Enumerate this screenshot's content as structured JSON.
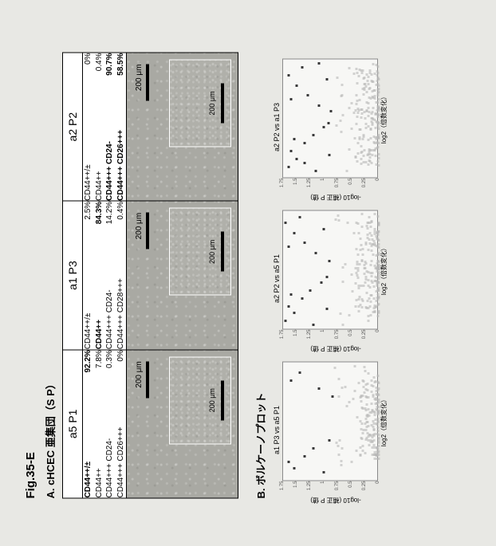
{
  "figure_label": "Fig.35-E",
  "panelA": {
    "title": "A. cHCEC 亜集団（S P）",
    "columns": [
      {
        "header": "a5 P1",
        "markers": [
          {
            "label": "CD44++/±",
            "pct": "92.2%",
            "bold": true
          },
          {
            "label": "CD44++",
            "pct": "7.8%"
          },
          {
            "label": "CD44+++  CD24-",
            "pct": "0.3%"
          },
          {
            "label": "CD44+++  CD26+++",
            "pct": "0%"
          }
        ],
        "scale_out": "200 μm",
        "scale_in": "200 μm"
      },
      {
        "header": "a1 P3",
        "markers": [
          {
            "label": "CD44++/±",
            "pct": "2.5%"
          },
          {
            "label": "CD44++",
            "pct": "84.3%",
            "bold": true
          },
          {
            "label": "CD44+++  CD24-",
            "pct": "14.2%"
          },
          {
            "label": "CD44+++  CD28+++",
            "pct": "0.4%"
          }
        ],
        "scale_out": "200 μm",
        "scale_in": "200 μm"
      },
      {
        "header": "a2 P2",
        "markers": [
          {
            "label": "CD44++/±",
            "pct": "0%"
          },
          {
            "label": "CD44++",
            "pct": "0.4%"
          },
          {
            "label": "CD44+++  CD24-",
            "pct": "90.7%",
            "bold": true
          },
          {
            "label": "CD44+++  CD26+++",
            "pct": "58.5%",
            "bold": true
          }
        ],
        "scale_out": "200 μm",
        "scale_in": "200 μm"
      }
    ]
  },
  "panelB": {
    "title": "B. ボルケーノプロット",
    "xlabel": "log2（倍数変化）",
    "ylabel": "-log10 (補正 P 値)",
    "plots": [
      {
        "title": "a1 P3 vs a5 P1",
        "yticks": [
          0,
          0.25,
          0.5,
          0.75,
          1,
          1.25,
          1.5,
          1.75
        ],
        "ylim": [
          0,
          1.75
        ],
        "xlim": [
          -3,
          3
        ],
        "colors": {
          "bg": "#f7f7f5",
          "grid": "#8a8a8a",
          "ns": "#b8b8b8",
          "sig": "#3a3a3a"
        },
        "gray_cloud": {
          "n": 140,
          "x_spread": 2.0,
          "y_max": 0.35
        },
        "sig_points": [
          {
            "x": -2.4,
            "y": 1.55
          },
          {
            "x": -2.1,
            "y": 1.65
          },
          {
            "x": -1.8,
            "y": 1.35
          },
          {
            "x": -1.4,
            "y": 1.2
          },
          {
            "x": 2.0,
            "y": 1.6
          },
          {
            "x": 1.6,
            "y": 1.1
          },
          {
            "x": -2.6,
            "y": 1.0
          },
          {
            "x": 2.4,
            "y": 1.45
          },
          {
            "x": -1.0,
            "y": 0.9
          },
          {
            "x": 1.2,
            "y": 0.85
          }
        ]
      },
      {
        "title": "a2 P2 vs a5 P1",
        "yticks": [
          0,
          0.25,
          0.5,
          0.75,
          1,
          1.25,
          1.5,
          1.75
        ],
        "ylim": [
          0,
          1.75
        ],
        "xlim": [
          -3,
          3
        ],
        "colors": {
          "bg": "#f7f7f5",
          "grid": "#8a8a8a",
          "ns": "#b8b8b8",
          "sig": "#3a3a3a"
        },
        "gray_cloud": {
          "n": 160,
          "x_spread": 2.4,
          "y_max": 0.45
        },
        "sig_points": [
          {
            "x": -2.6,
            "y": 1.7
          },
          {
            "x": -2.2,
            "y": 1.55
          },
          {
            "x": -1.9,
            "y": 1.65
          },
          {
            "x": -1.5,
            "y": 1.4
          },
          {
            "x": -1.1,
            "y": 1.25
          },
          {
            "x": -0.7,
            "y": 1.05
          },
          {
            "x": 0.8,
            "y": 1.15
          },
          {
            "x": 1.3,
            "y": 1.35
          },
          {
            "x": 1.8,
            "y": 1.55
          },
          {
            "x": 2.3,
            "y": 1.7
          },
          {
            "x": 2.6,
            "y": 1.45
          },
          {
            "x": -2.8,
            "y": 1.2
          },
          {
            "x": -2.0,
            "y": 0.95
          },
          {
            "x": 2.0,
            "y": 1.0
          },
          {
            "x": -1.3,
            "y": 1.6
          },
          {
            "x": 1.1,
            "y": 1.65
          },
          {
            "x": 0.4,
            "y": 0.9
          },
          {
            "x": -0.4,
            "y": 0.95
          }
        ]
      },
      {
        "title": "a2 P2 vs a1 P3",
        "yticks": [
          0,
          0.25,
          0.5,
          0.75,
          1,
          1.25,
          1.5,
          1.75
        ],
        "ylim": [
          0,
          1.75
        ],
        "xlim": [
          -3,
          3
        ],
        "colors": {
          "bg": "#f7f7f5",
          "grid": "#8a8a8a",
          "ns": "#b8b8b8",
          "sig": "#3a3a3a"
        },
        "gray_cloud": {
          "n": 160,
          "x_spread": 2.4,
          "y_max": 0.45
        },
        "sig_points": [
          {
            "x": -2.5,
            "y": 1.65
          },
          {
            "x": -2.1,
            "y": 1.5
          },
          {
            "x": -1.7,
            "y": 1.6
          },
          {
            "x": -1.3,
            "y": 1.35
          },
          {
            "x": -0.9,
            "y": 1.2
          },
          {
            "x": -0.5,
            "y": 1.0
          },
          {
            "x": 0.6,
            "y": 1.1
          },
          {
            "x": 1.1,
            "y": 1.3
          },
          {
            "x": 1.6,
            "y": 1.5
          },
          {
            "x": 2.1,
            "y": 1.65
          },
          {
            "x": 2.5,
            "y": 1.4
          },
          {
            "x": -2.7,
            "y": 1.15
          },
          {
            "x": -1.9,
            "y": 0.9
          },
          {
            "x": 1.9,
            "y": 0.95
          },
          {
            "x": -1.1,
            "y": 1.55
          },
          {
            "x": 0.9,
            "y": 1.6
          },
          {
            "x": 0.3,
            "y": 0.88
          },
          {
            "x": -0.3,
            "y": 0.92
          },
          {
            "x": 2.7,
            "y": 1.1
          },
          {
            "x": -2.3,
            "y": 1.35
          }
        ]
      }
    ]
  }
}
